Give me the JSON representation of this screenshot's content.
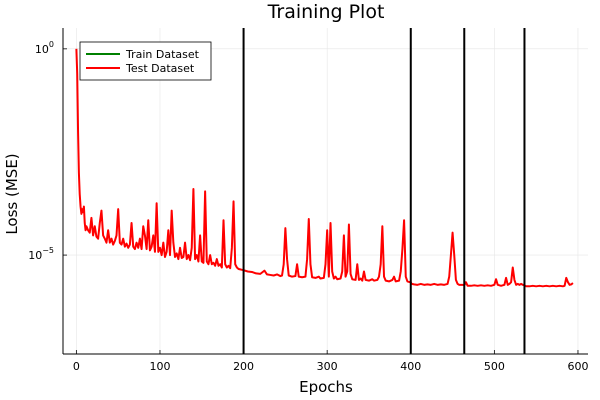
{
  "chart_data": {
    "type": "line",
    "title": "Training Plot",
    "xlabel": "Epochs",
    "ylabel": "Loss (MSE)",
    "xlim": [
      -16,
      612
    ],
    "x_ticks": [
      0,
      100,
      200,
      300,
      400,
      500,
      600
    ],
    "y_scale": "log",
    "ylim": [
      4e-08,
      3.2
    ],
    "y_ticks": [
      {
        "value": 1,
        "label": "10",
        "exp": "0"
      },
      {
        "value": 1e-05,
        "label": "10",
        "exp": "−5"
      }
    ],
    "grid": true,
    "legend": {
      "position": "top-left"
    },
    "vlines": [
      200,
      400,
      464,
      536
    ],
    "series": [
      {
        "name": "Train Dataset",
        "color": "#008000",
        "legend_only": true
      },
      {
        "name": "Test Dataset",
        "color": "#ff0000",
        "points": [
          [
            0,
            1.0
          ],
          [
            1,
            0.25
          ],
          [
            2,
            0.01
          ],
          [
            3,
            0.001
          ],
          [
            4,
            0.0003
          ],
          [
            5,
            0.00015
          ],
          [
            6,
            0.0001
          ],
          [
            7,
            0.00013
          ],
          [
            8,
            0.00011
          ],
          [
            9,
            0.00015
          ],
          [
            10,
            6e-05
          ],
          [
            11,
            4e-05
          ],
          [
            12,
            5e-05
          ],
          [
            14,
            4e-05
          ],
          [
            16,
            3.5e-05
          ],
          [
            18,
            8e-05
          ],
          [
            20,
            3e-05
          ],
          [
            22,
            5e-05
          ],
          [
            24,
            2.8e-05
          ],
          [
            26,
            2.5e-05
          ],
          [
            28,
            6e-05
          ],
          [
            30,
            0.00012
          ],
          [
            32,
            3e-05
          ],
          [
            34,
            2.5e-05
          ],
          [
            36,
            2e-05
          ],
          [
            38,
            4e-05
          ],
          [
            40,
            2e-05
          ],
          [
            42,
            2.5e-05
          ],
          [
            44,
            1.8e-05
          ],
          [
            46,
            2.2e-05
          ],
          [
            48,
            3e-05
          ],
          [
            50,
            0.00013
          ],
          [
            52,
            2e-05
          ],
          [
            54,
            1.8e-05
          ],
          [
            56,
            2.5e-05
          ],
          [
            58,
            1.6e-05
          ],
          [
            60,
            1.9e-05
          ],
          [
            62,
            1.5e-05
          ],
          [
            64,
            1.8e-05
          ],
          [
            66,
            6e-05
          ],
          [
            68,
            1.6e-05
          ],
          [
            70,
            1.4e-05
          ],
          [
            72,
            2e-05
          ],
          [
            74,
            1.5e-05
          ],
          [
            76,
            2.5e-05
          ],
          [
            78,
            1.4e-05
          ],
          [
            80,
            5e-05
          ],
          [
            82,
            3e-05
          ],
          [
            84,
            1.4e-05
          ],
          [
            86,
            7e-05
          ],
          [
            88,
            1.3e-05
          ],
          [
            90,
            1.6e-05
          ],
          [
            92,
            3e-05
          ],
          [
            94,
            1.2e-05
          ],
          [
            96,
            0.00018
          ],
          [
            98,
            1.2e-05
          ],
          [
            100,
            1.5e-05
          ],
          [
            102,
            1e-05
          ],
          [
            104,
            2e-05
          ],
          [
            106,
            9e-06
          ],
          [
            108,
            1.2e-05
          ],
          [
            110,
            4e-05
          ],
          [
            112,
            1e-05
          ],
          [
            114,
            0.00012
          ],
          [
            116,
            2e-05
          ],
          [
            118,
            9e-06
          ],
          [
            120,
            1.1e-05
          ],
          [
            122,
            8e-06
          ],
          [
            124,
            1.5e-05
          ],
          [
            126,
            8.5e-06
          ],
          [
            128,
            9e-06
          ],
          [
            130,
            2e-05
          ],
          [
            132,
            8e-06
          ],
          [
            134,
            1e-05
          ],
          [
            136,
            7.5e-06
          ],
          [
            138,
            1.5e-05
          ],
          [
            140,
            0.0004
          ],
          [
            142,
            8e-06
          ],
          [
            144,
            1e-05
          ],
          [
            146,
            7e-06
          ],
          [
            148,
            3e-05
          ],
          [
            150,
            7e-06
          ],
          [
            152,
            6.5e-06
          ],
          [
            154,
            0.00035
          ],
          [
            156,
            7e-06
          ],
          [
            158,
            6e-06
          ],
          [
            160,
            1e-05
          ],
          [
            162,
            6e-06
          ],
          [
            164,
            6.5e-06
          ],
          [
            166,
            5.5e-06
          ],
          [
            168,
            8e-06
          ],
          [
            170,
            5.5e-06
          ],
          [
            172,
            6e-06
          ],
          [
            174,
            5e-06
          ],
          [
            176,
            7e-05
          ],
          [
            178,
            6e-06
          ],
          [
            180,
            5e-06
          ],
          [
            182,
            5.5e-06
          ],
          [
            184,
            4.8e-06
          ],
          [
            186,
            1.5e-05
          ],
          [
            188,
            0.0002
          ],
          [
            190,
            6e-06
          ],
          [
            192,
            5e-06
          ],
          [
            194,
            4.6e-06
          ],
          [
            196,
            4.5e-06
          ],
          [
            198,
            4.4e-06
          ],
          [
            200,
            4.3e-06
          ],
          [
            205,
            4e-06
          ],
          [
            210,
            3.9e-06
          ],
          [
            215,
            3.6e-06
          ],
          [
            220,
            3.5e-06
          ],
          [
            225,
            4.2e-06
          ],
          [
            228,
            3.4e-06
          ],
          [
            232,
            3.3e-06
          ],
          [
            236,
            3.2e-06
          ],
          [
            240,
            3.4e-06
          ],
          [
            244,
            3.1e-06
          ],
          [
            246,
            3.2e-06
          ],
          [
            248,
            6e-06
          ],
          [
            250,
            4.5e-05
          ],
          [
            252,
            8e-06
          ],
          [
            254,
            3.2e-06
          ],
          [
            258,
            3e-06
          ],
          [
            262,
            3.1e-06
          ],
          [
            264,
            6e-06
          ],
          [
            266,
            3e-06
          ],
          [
            270,
            2.9e-06
          ],
          [
            274,
            3e-06
          ],
          [
            276,
            8e-06
          ],
          [
            278,
            7.5e-05
          ],
          [
            280,
            6e-06
          ],
          [
            282,
            2.9e-06
          ],
          [
            286,
            2.8e-06
          ],
          [
            290,
            3e-06
          ],
          [
            292,
            2.7e-06
          ],
          [
            296,
            2.8e-06
          ],
          [
            298,
            6e-06
          ],
          [
            300,
            4e-05
          ],
          [
            302,
            3e-06
          ],
          [
            304,
            6e-05
          ],
          [
            306,
            4e-06
          ],
          [
            308,
            2.7e-06
          ],
          [
            310,
            3e-06
          ],
          [
            312,
            2.6e-06
          ],
          [
            316,
            2.7e-06
          ],
          [
            318,
            4e-06
          ],
          [
            320,
            3e-05
          ],
          [
            322,
            3e-06
          ],
          [
            324,
            4e-06
          ],
          [
            326,
            5.5e-05
          ],
          [
            328,
            3.5e-06
          ],
          [
            330,
            2.6e-06
          ],
          [
            334,
            2.5e-06
          ],
          [
            336,
            6e-06
          ],
          [
            338,
            2.5e-06
          ],
          [
            340,
            2.7e-06
          ],
          [
            342,
            2.4e-06
          ],
          [
            344,
            4e-06
          ],
          [
            346,
            2.5e-06
          ],
          [
            350,
            2.4e-06
          ],
          [
            354,
            2.6e-06
          ],
          [
            356,
            2.4e-06
          ],
          [
            360,
            2.5e-06
          ],
          [
            362,
            3e-06
          ],
          [
            364,
            6e-06
          ],
          [
            366,
            5e-05
          ],
          [
            368,
            3e-06
          ],
          [
            370,
            2.4e-06
          ],
          [
            374,
            2.3e-06
          ],
          [
            378,
            2.5e-06
          ],
          [
            380,
            3e-06
          ],
          [
            382,
            2.3e-06
          ],
          [
            386,
            2.4e-06
          ],
          [
            388,
            4e-06
          ],
          [
            390,
            1.4e-05
          ],
          [
            392,
            7e-05
          ],
          [
            394,
            3e-06
          ],
          [
            396,
            2.3e-06
          ],
          [
            399,
            2.2e-06
          ],
          [
            400,
            2.2e-06
          ],
          [
            401,
            2e-06
          ],
          [
            404,
            1.95e-06
          ],
          [
            408,
            1.9e-06
          ],
          [
            412,
            2e-06
          ],
          [
            416,
            1.9e-06
          ],
          [
            420,
            1.95e-06
          ],
          [
            424,
            1.9e-06
          ],
          [
            428,
            2e-06
          ],
          [
            432,
            1.9e-06
          ],
          [
            436,
            1.95e-06
          ],
          [
            440,
            1.9e-06
          ],
          [
            444,
            2e-06
          ],
          [
            446,
            3e-06
          ],
          [
            448,
            1e-05
          ],
          [
            450,
            3.5e-05
          ],
          [
            452,
            1e-05
          ],
          [
            454,
            2.5e-06
          ],
          [
            456,
            2e-06
          ],
          [
            458,
            1.9e-06
          ],
          [
            462,
            1.9e-06
          ],
          [
            464,
            1.85e-06
          ],
          [
            466,
            2.2e-06
          ],
          [
            468,
            1.8e-06
          ],
          [
            472,
            1.8e-06
          ],
          [
            476,
            1.85e-06
          ],
          [
            480,
            1.8e-06
          ],
          [
            484,
            1.85e-06
          ],
          [
            488,
            1.8e-06
          ],
          [
            492,
            1.85e-06
          ],
          [
            496,
            1.8e-06
          ],
          [
            500,
            1.9e-06
          ],
          [
            502,
            2.6e-06
          ],
          [
            504,
            1.9e-06
          ],
          [
            508,
            1.8e-06
          ],
          [
            512,
            1.9e-06
          ],
          [
            514,
            2.8e-06
          ],
          [
            516,
            1.9e-06
          ],
          [
            518,
            2e-06
          ],
          [
            520,
            2.2e-06
          ],
          [
            522,
            5e-06
          ],
          [
            524,
            2.5e-06
          ],
          [
            526,
            1.9e-06
          ],
          [
            528,
            2e-06
          ],
          [
            530,
            1.9e-06
          ],
          [
            532,
            2e-06
          ],
          [
            534,
            1.9e-06
          ],
          [
            536,
            1.85e-06
          ],
          [
            538,
            1.75e-06
          ],
          [
            542,
            1.75e-06
          ],
          [
            546,
            1.8e-06
          ],
          [
            550,
            1.75e-06
          ],
          [
            554,
            1.8e-06
          ],
          [
            558,
            1.75e-06
          ],
          [
            562,
            1.8e-06
          ],
          [
            566,
            1.75e-06
          ],
          [
            570,
            1.8e-06
          ],
          [
            574,
            1.75e-06
          ],
          [
            578,
            1.8e-06
          ],
          [
            582,
            1.75e-06
          ],
          [
            584,
            1.8e-06
          ],
          [
            586,
            2.8e-06
          ],
          [
            588,
            2.2e-06
          ],
          [
            590,
            1.9e-06
          ],
          [
            592,
            1.95e-06
          ],
          [
            594,
            2.1e-06
          ]
        ]
      }
    ]
  }
}
